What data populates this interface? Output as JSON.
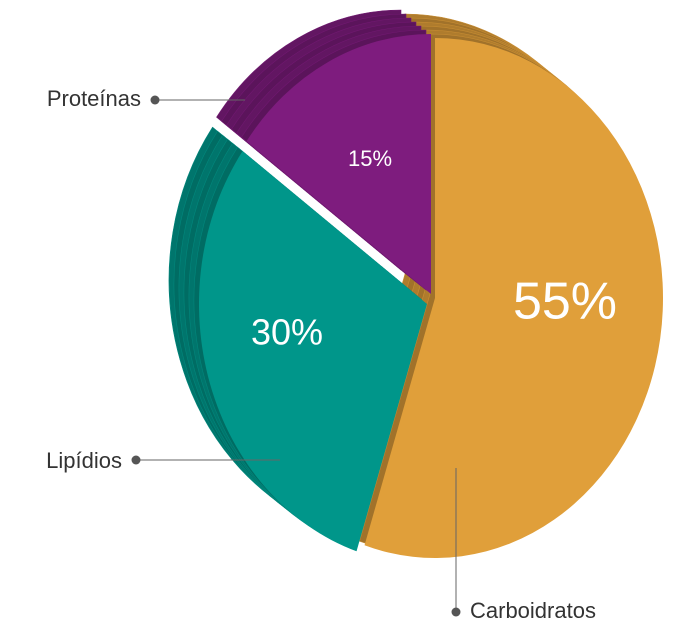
{
  "chart_data": {
    "type": "pie",
    "categories": [
      "Carboidratos",
      "Lipídios",
      "Proteínas"
    ],
    "values": [
      55,
      30,
      15
    ],
    "value_labels": [
      "55%",
      "30%",
      "15%"
    ],
    "colors": [
      "#e09f3a",
      "#00968a",
      "#7e1c7e"
    ]
  }
}
